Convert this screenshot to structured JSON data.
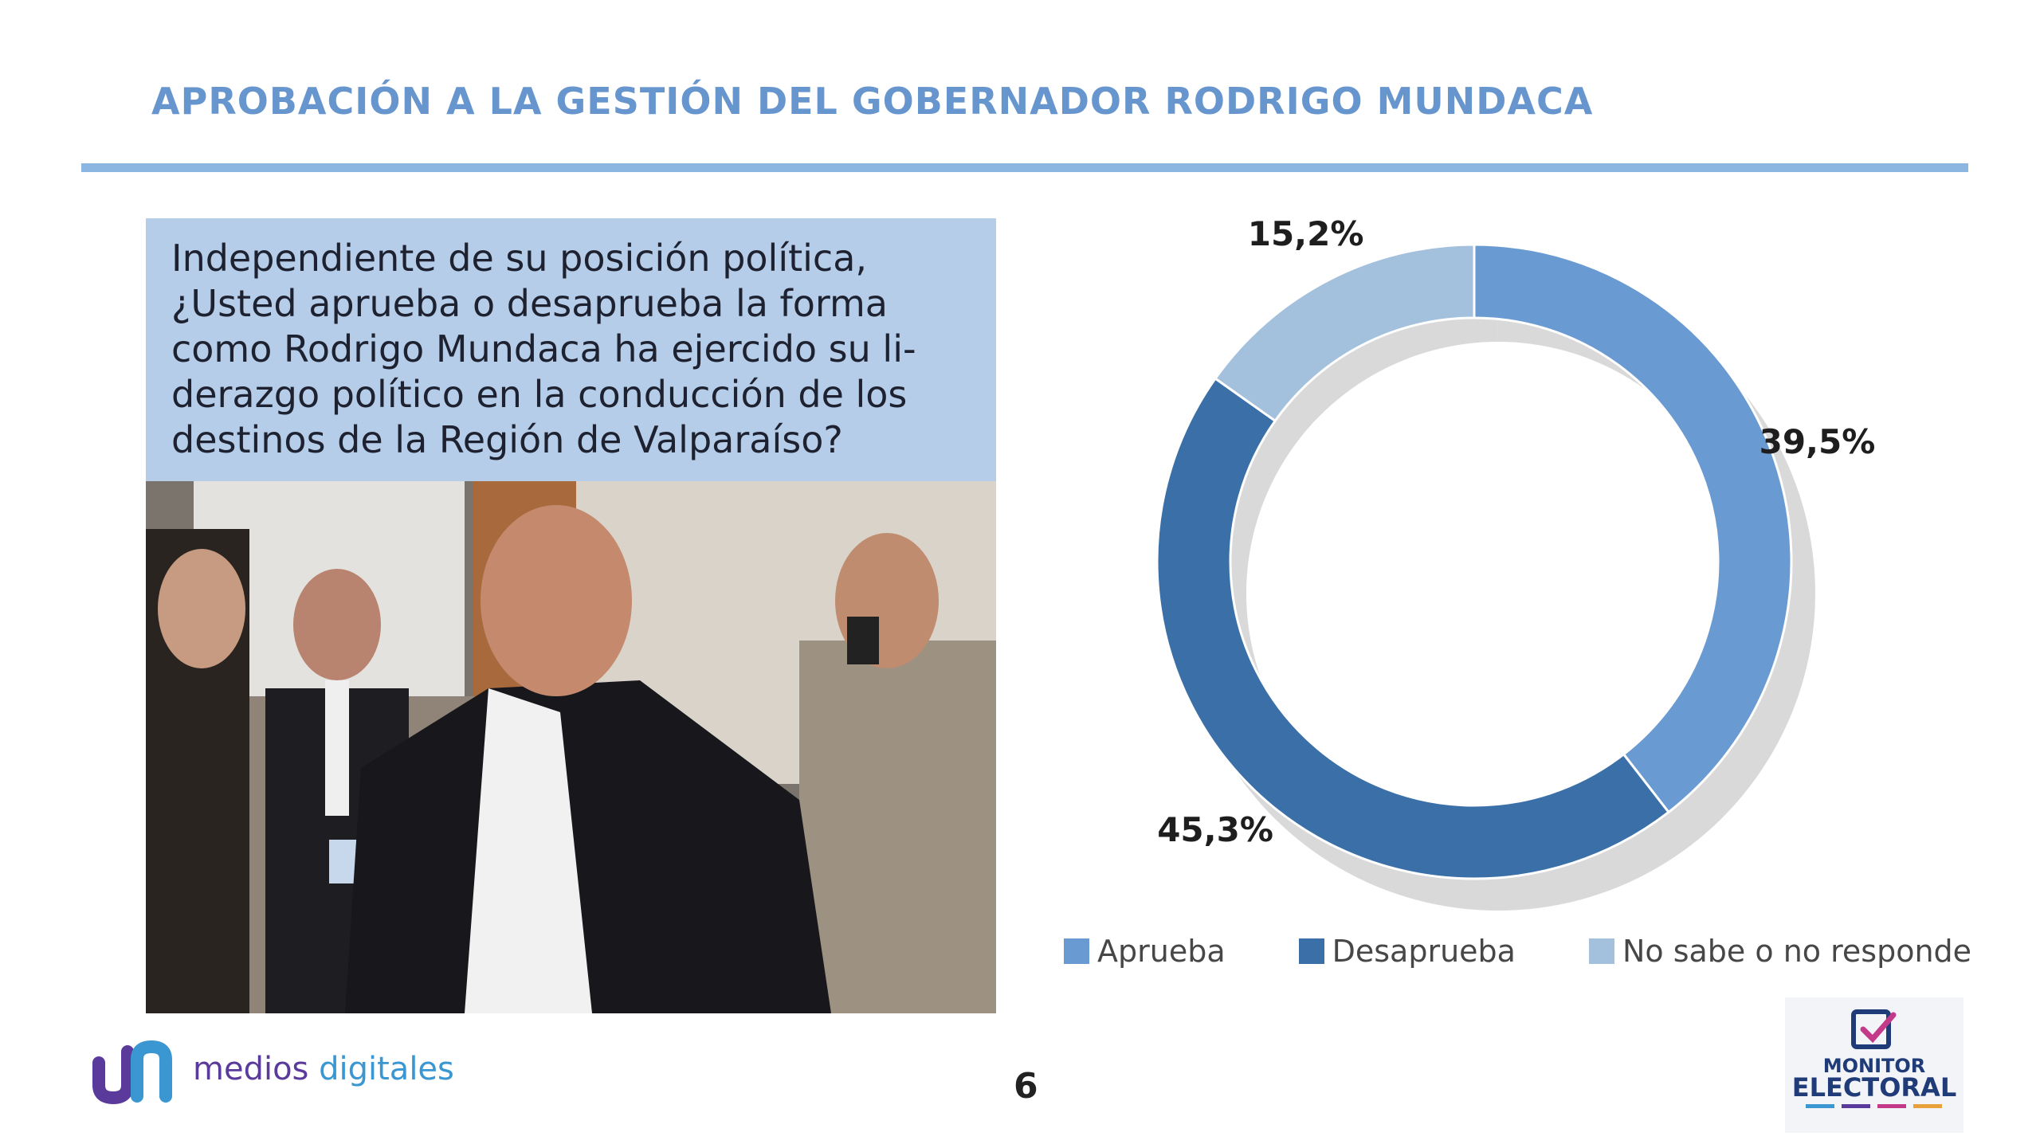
{
  "header": {
    "title": "APROBACIÓN A LA GESTIÓN DEL GOBERNADOR RODRIGO MUNDACA"
  },
  "question": {
    "lines": [
      "Independiente de su posición política,",
      "¿Usted aprueba o desaprueba la forma",
      "como Rodrigo Mundaca ha ejercido su li-",
      "derazgo político en la conducción de los",
      "destinos de la Región de Valparaíso?"
    ]
  },
  "chart_data": {
    "type": "pie",
    "variant": "donut",
    "categories": [
      "Aprueba",
      "Desaprueba",
      "No sabe o no responde"
    ],
    "values": [
      39.5,
      45.3,
      15.2
    ],
    "labels": [
      "39,5%",
      "45,3%",
      "15,2%"
    ],
    "colors": [
      "#6a9ad2",
      "#3a6fa8",
      "#a3c1dd"
    ],
    "legend_position": "bottom"
  },
  "footer": {
    "logo_word1": "medios",
    "logo_word2": "digitales",
    "page_number": "6",
    "monitor_line1": "MONITOR",
    "monitor_line2": "ELECTORAL"
  },
  "colors": {
    "title": "#6795cd",
    "rule": "#8cb6e2",
    "question_bg": "#b5cde8"
  }
}
